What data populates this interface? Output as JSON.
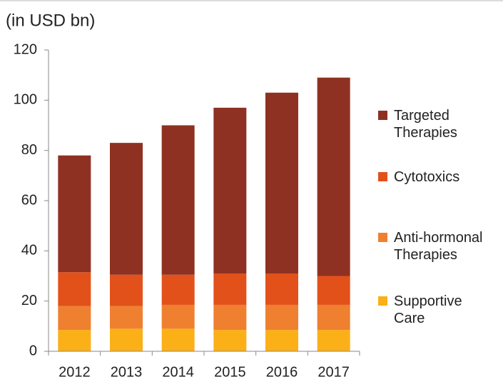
{
  "chart_data": {
    "type": "stacked_bar",
    "title": "(in USD bn)",
    "categories": [
      "2012",
      "2013",
      "2014",
      "2015",
      "2016",
      "2017"
    ],
    "series": [
      {
        "name": "Supportive Care",
        "color": "#fbb018",
        "values": [
          8.5,
          9,
          9,
          8.5,
          8.5,
          8.5
        ]
      },
      {
        "name": "Anti-hormonal Therapies",
        "color": "#ee8030",
        "values": [
          9.5,
          9,
          9.5,
          10,
          10,
          10
        ]
      },
      {
        "name": "Cytotoxics",
        "color": "#e2511a",
        "values": [
          13.5,
          12.5,
          12,
          12.5,
          12.5,
          11.5
        ]
      },
      {
        "name": "Targeted Therapies",
        "color": "#8e3122",
        "values": [
          46.5,
          52.5,
          59.5,
          66,
          72,
          79
        ]
      }
    ],
    "ylim": [
      0,
      120
    ],
    "yticks": [
      0,
      20,
      40,
      60,
      80,
      100,
      120
    ],
    "legend": "right"
  }
}
